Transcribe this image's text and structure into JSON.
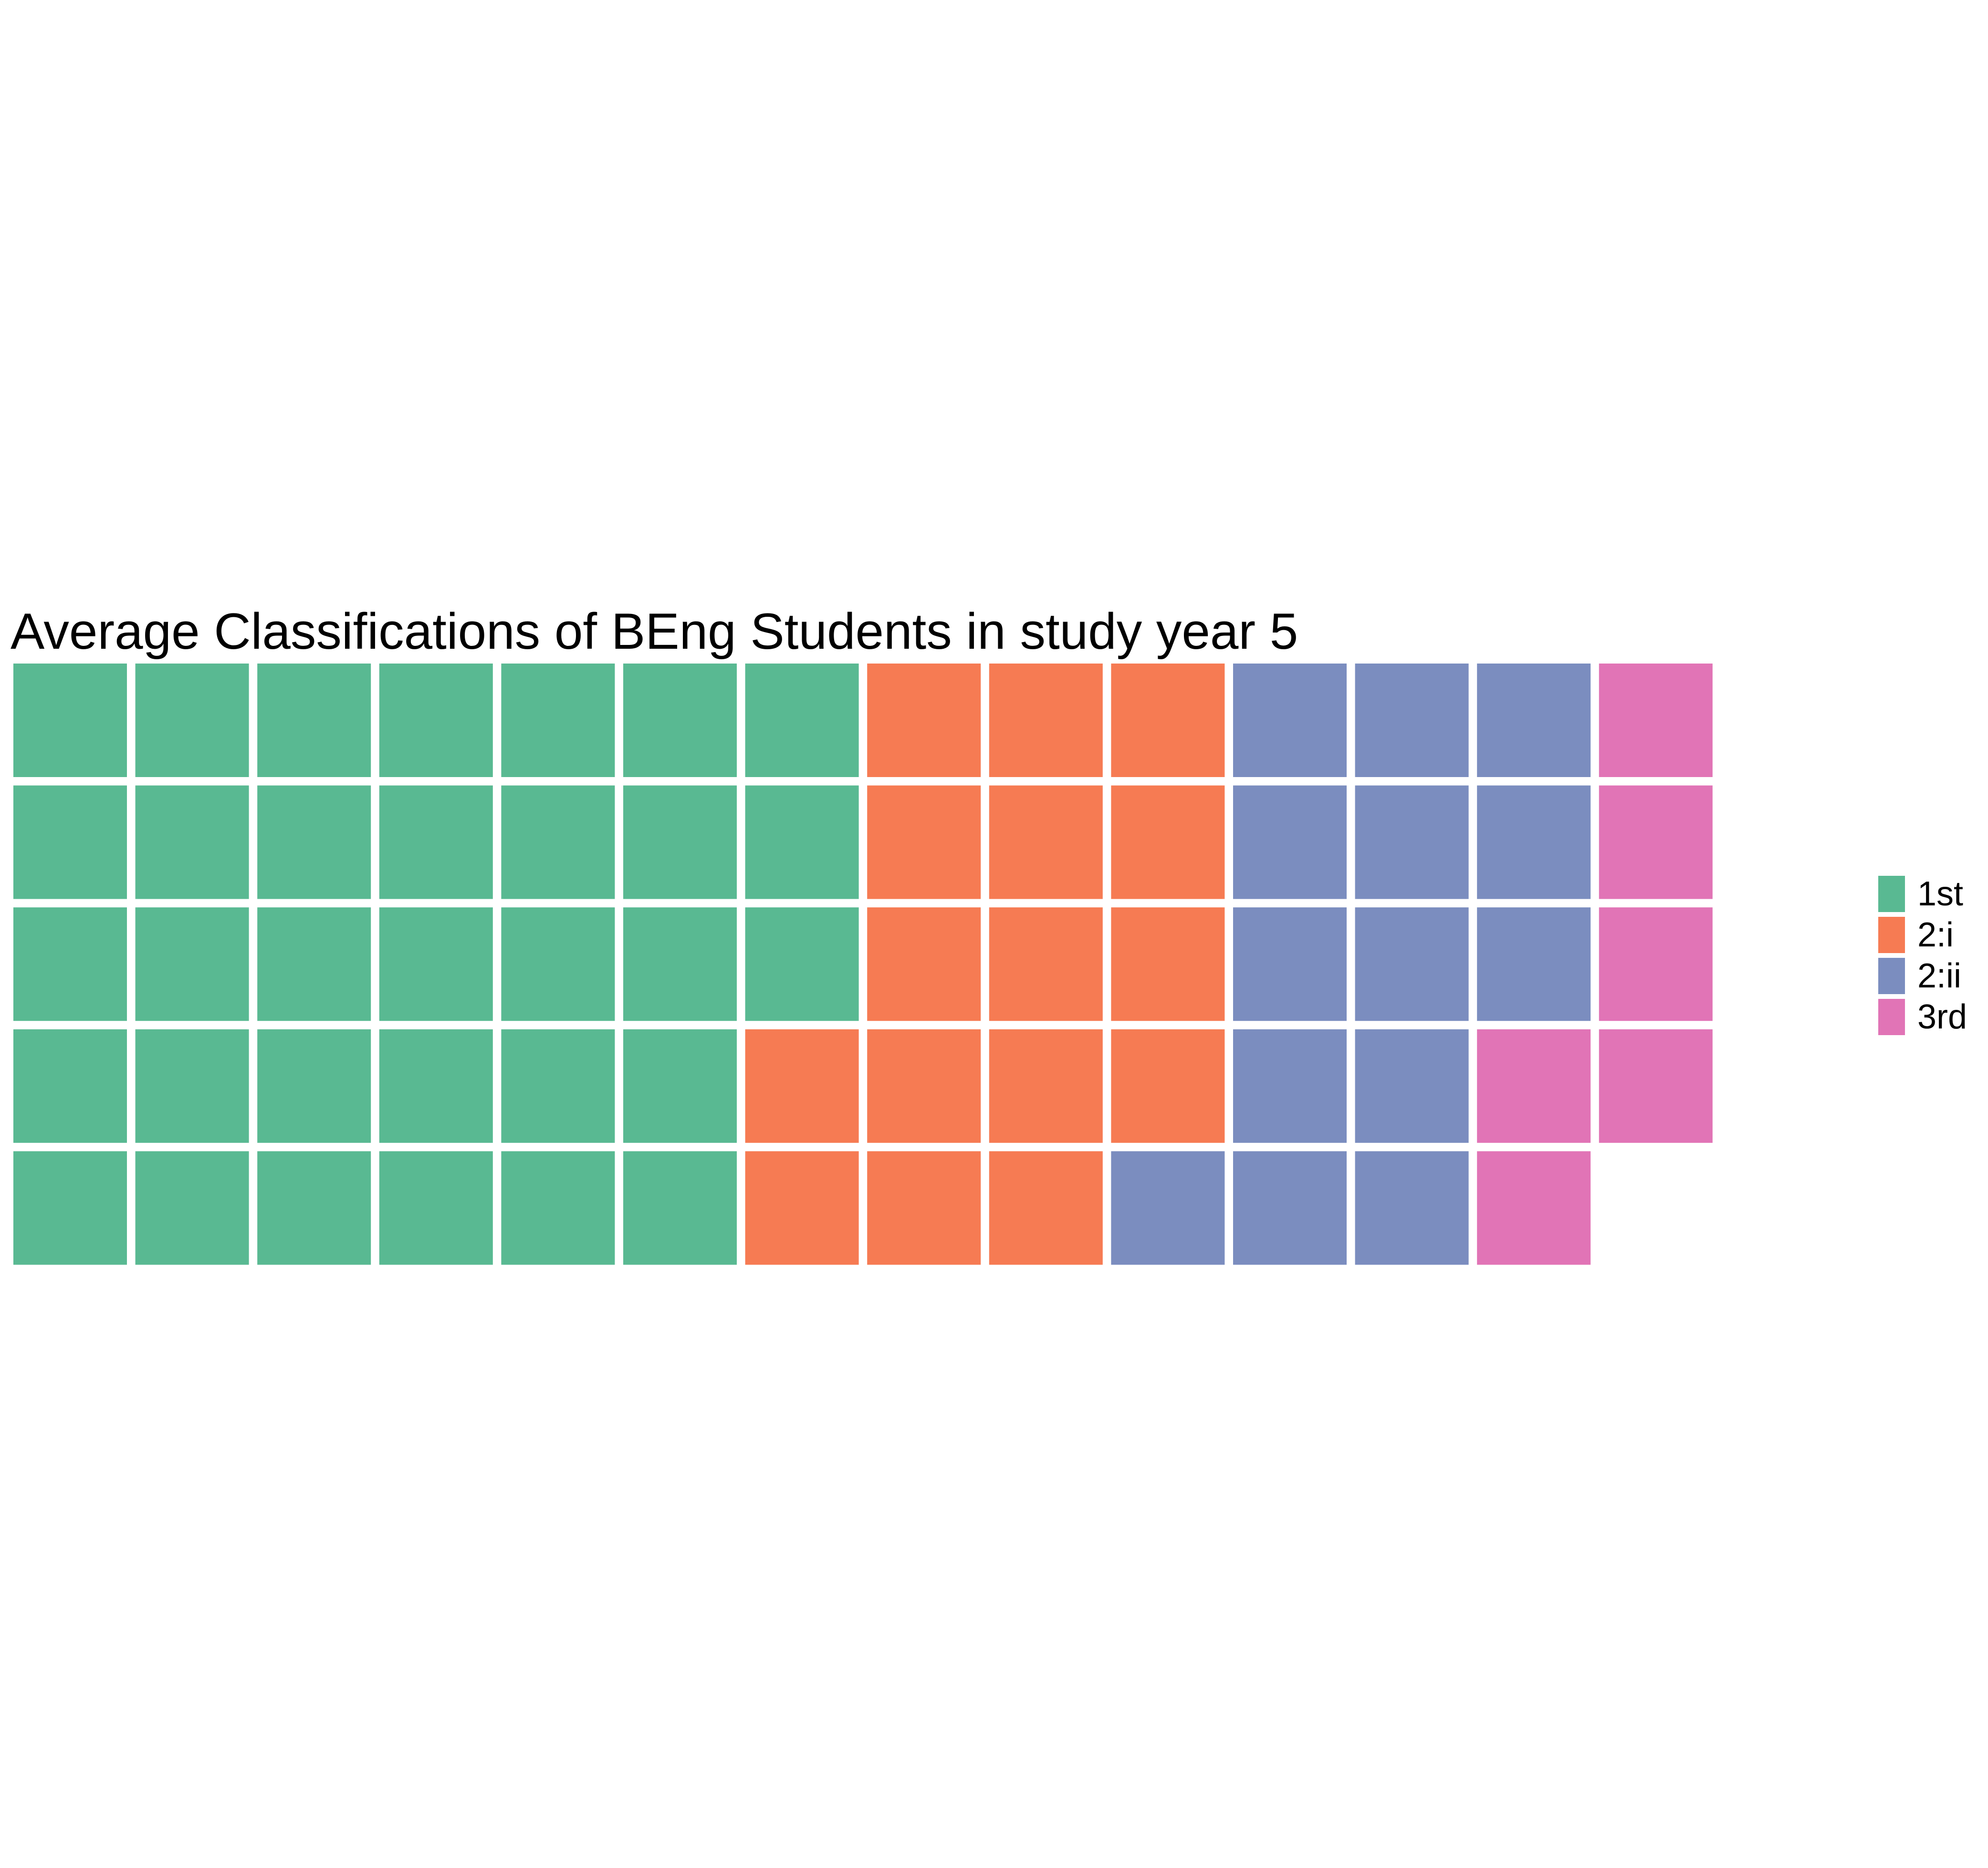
{
  "chart_data": {
    "type": "waffle",
    "title": "Average Classifications of BEng Students in study year 5",
    "rows": 5,
    "fill_order": "column-major, top-to-bottom, left-to-right",
    "categories": [
      "1st",
      "2:i",
      "2:ii",
      "3rd"
    ],
    "values": [
      33,
      16,
      14,
      6
    ],
    "colors": [
      "#59b992",
      "#f67b53",
      "#7b8dbf",
      "#e174b6"
    ],
    "legend": {
      "position": "right",
      "entries": [
        "1st",
        "2:i",
        "2:ii",
        "3rd"
      ]
    },
    "grid": false,
    "axes": false
  }
}
